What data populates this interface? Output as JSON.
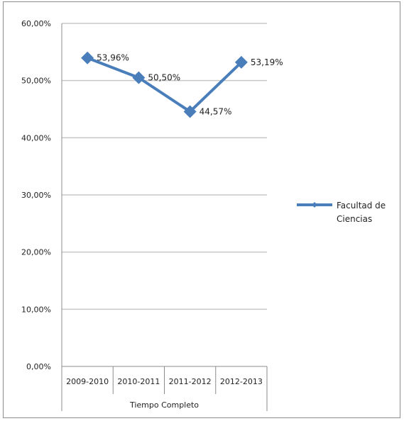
{
  "chart_data": {
    "type": "line",
    "categories": [
      "2009-2010",
      "2010-2011",
      "2011-2012",
      "2012-2013"
    ],
    "series": [
      {
        "name": "Facultad de Ciencias",
        "values": [
          53.96,
          50.5,
          44.57,
          53.19
        ],
        "data_labels": [
          "53,96%",
          "50,50%",
          "44,57%",
          "53,19%"
        ],
        "color": "#4a7ebb"
      }
    ],
    "xlabel": "Tiempo Completo",
    "ylabel": "",
    "ylim": [
      0,
      60
    ],
    "y_ticks": [
      0,
      10,
      20,
      30,
      40,
      50,
      60
    ],
    "y_tick_labels": [
      "0,00%",
      "10,00%",
      "20,00%",
      "30,00%",
      "40,00%",
      "50,00%",
      "60,00%"
    ],
    "grid": true,
    "legend": {
      "position": "right",
      "label_lines": [
        "Facultad de",
        "Ciencias"
      ]
    }
  }
}
